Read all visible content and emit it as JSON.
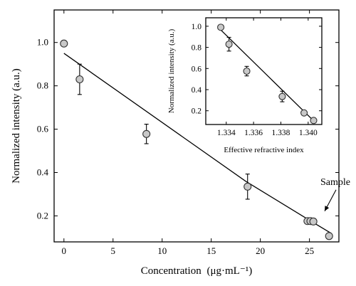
{
  "chart_data": [
    {
      "type": "scatter",
      "xlabel": "Concentration",
      "xlabel_unit": "(μg·mL⁻¹)",
      "ylabel": "Normalized intensity (a.u.)",
      "xlim": [
        -1,
        28
      ],
      "ylim": [
        0.08,
        1.15
      ],
      "xticks": [
        0,
        5,
        10,
        15,
        20,
        25
      ],
      "yticks": [
        0.2,
        0.4,
        0.6,
        0.8,
        1.0
      ],
      "ytick_labels": [
        "0.2",
        "0.4",
        "0.6",
        "0.8",
        "1.0"
      ],
      "point_color": "#c8c8c8",
      "points": [
        {
          "x": 0,
          "y": 0.995,
          "err": 0
        },
        {
          "x": 1.6,
          "y": 0.83,
          "err": 0.07
        },
        {
          "x": 8.4,
          "y": 0.578,
          "err": 0.045
        },
        {
          "x": 18.7,
          "y": 0.335,
          "err": 0.058
        },
        {
          "x": 24.8,
          "y": 0.176,
          "err": 0
        },
        {
          "x": 25.1,
          "y": 0.176,
          "err": 0
        },
        {
          "x": 25.4,
          "y": 0.174,
          "err": 0
        },
        {
          "x": 27.0,
          "y": 0.107,
          "err": 0
        }
      ],
      "fit_line": [
        {
          "x": 0,
          "y": 0.95
        },
        {
          "x": 18.5,
          "y": 0.36
        },
        {
          "x": 25.0,
          "y": 0.18
        },
        {
          "x": 27.2,
          "y": 0.12
        }
      ],
      "annotation": {
        "text": "Sample",
        "x": 25.1,
        "y": 0.176
      }
    },
    {
      "type": "scatter",
      "xlabel": "Effective refractive index",
      "ylabel": "Normalized intensity (a.u.)",
      "xlim": [
        1.3325,
        1.341
      ],
      "ylim": [
        0.07,
        1.08
      ],
      "xticks": [
        1.334,
        1.336,
        1.338,
        1.34
      ],
      "xtick_labels": [
        "1.334",
        "1.336",
        "1.338",
        "1.340"
      ],
      "yticks": [
        0.2,
        0.4,
        0.6,
        0.8,
        1.0
      ],
      "ytick_labels": [
        "0.2",
        "0.4",
        "0.6",
        "0.8",
        "1.0"
      ],
      "point_color": "#c8c8c8",
      "points": [
        {
          "x": 1.3336,
          "y": 0.99,
          "err": 0
        },
        {
          "x": 1.3342,
          "y": 0.83,
          "err": 0.065
        },
        {
          "x": 1.3355,
          "y": 0.575,
          "err": 0.045
        },
        {
          "x": 1.3381,
          "y": 0.335,
          "err": 0.05
        },
        {
          "x": 1.3397,
          "y": 0.18,
          "err": 0
        },
        {
          "x": 1.3404,
          "y": 0.108,
          "err": 0
        }
      ],
      "fit_line": [
        {
          "x": 1.3336,
          "y": 0.965
        },
        {
          "x": 1.3404,
          "y": 0.105
        }
      ]
    }
  ]
}
